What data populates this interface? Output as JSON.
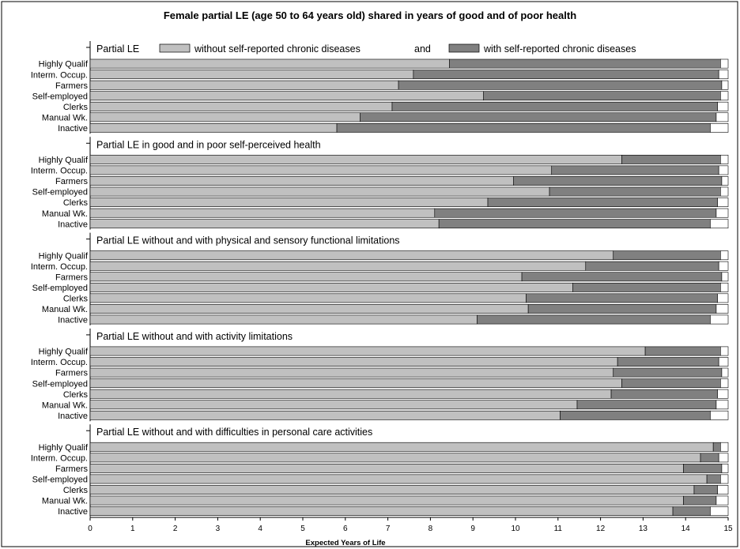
{
  "chart_data": {
    "type": "bar",
    "title": "Female partial LE  (age 50 to 64 years old) shared in years of good and of poor health",
    "xlabel": "Expected Years of Life",
    "xlim": [
      0,
      15
    ],
    "x_ticks": [
      "0",
      "1",
      "2",
      "3",
      "4",
      "5",
      "6",
      "7",
      "8",
      "9",
      "10",
      "11",
      "12",
      "13",
      "14",
      "15"
    ],
    "categories": [
      "Highly Qualif",
      "Interm. Occup.",
      "Farmers",
      "Self-employed",
      "Clerks",
      "Manual Wk.",
      "Inactive"
    ],
    "legend": {
      "without_label": "without self-reported chronic diseases",
      "and_label": "and",
      "with_label": "with self-reported chronic diseases"
    },
    "colors": {
      "good": "#c0c0c0",
      "poor": "#808080",
      "remainder": "#ffffff",
      "frame": "#000000"
    },
    "panels": [
      {
        "title": "Partial LE",
        "good": [
          8.45,
          7.6,
          7.25,
          9.25,
          7.1,
          6.35,
          5.8
        ],
        "total": [
          14.82,
          14.78,
          14.85,
          14.82,
          14.75,
          14.72,
          14.58
        ]
      },
      {
        "title": "Partial LE in good and in poor self-perceived health",
        "good": [
          12.5,
          10.85,
          9.95,
          10.8,
          9.35,
          8.1,
          8.2
        ],
        "total": [
          14.82,
          14.78,
          14.85,
          14.82,
          14.75,
          14.72,
          14.58
        ]
      },
      {
        "title": "Partial LE without and with physical and sensory functional limitations",
        "good": [
          12.3,
          11.65,
          10.15,
          11.35,
          10.25,
          10.3,
          9.1
        ],
        "total": [
          14.82,
          14.78,
          14.85,
          14.82,
          14.75,
          14.72,
          14.58
        ]
      },
      {
        "title": "Partial LE without and with activity limitations",
        "good": [
          13.05,
          12.4,
          12.3,
          12.5,
          12.25,
          11.45,
          11.05
        ],
        "total": [
          14.82,
          14.78,
          14.85,
          14.82,
          14.75,
          14.72,
          14.58
        ]
      },
      {
        "title": "Partial LE without and with difficulties in personal care activities",
        "good": [
          14.65,
          14.35,
          13.95,
          14.5,
          14.2,
          13.95,
          13.7
        ],
        "total": [
          14.82,
          14.78,
          14.85,
          14.82,
          14.75,
          14.72,
          14.58
        ]
      }
    ]
  }
}
